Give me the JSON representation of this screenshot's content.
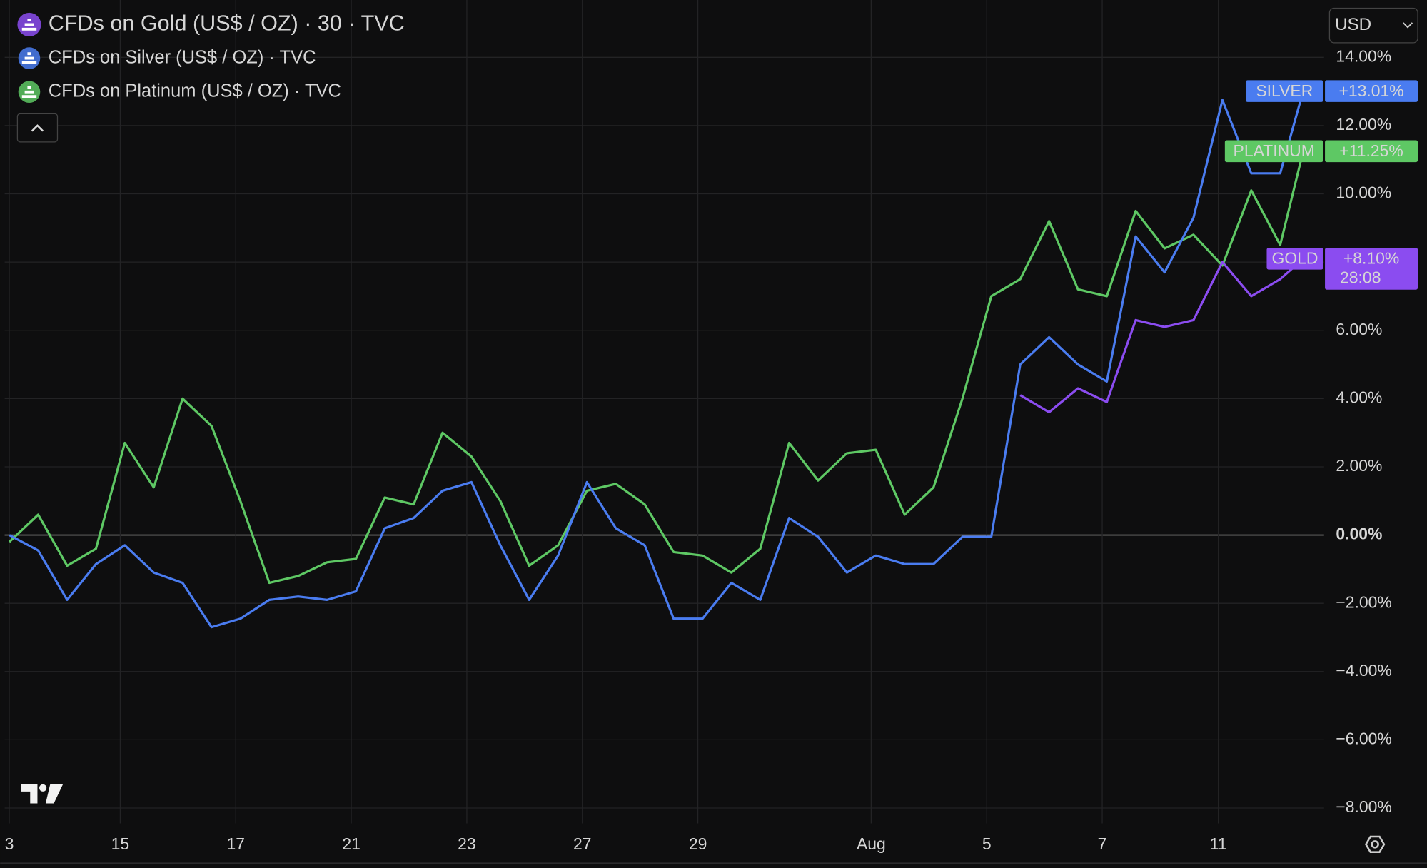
{
  "header": {
    "currency": "USD"
  },
  "chart_data": {
    "type": "line",
    "x": [
      0,
      0.5,
      1,
      1.5,
      2,
      2.5,
      3,
      3.5,
      4,
      4.5,
      5,
      5.5,
      6,
      6.5,
      7,
      7.5,
      8,
      8.5,
      9,
      9.5,
      10,
      10.5,
      11,
      11.5,
      12,
      12.5,
      13,
      13.5,
      14,
      14.5,
      15,
      15.5,
      16,
      16.5,
      17,
      17.5,
      18,
      18.5,
      19,
      19.5,
      20,
      20.5,
      21,
      21.5,
      22,
      22.4
    ],
    "xlim": [
      -0.08,
      22.76
    ],
    "xticks": [
      {
        "value": 0,
        "label": "3"
      },
      {
        "value": 1.92,
        "label": "15"
      },
      {
        "value": 3.92,
        "label": "17"
      },
      {
        "value": 5.92,
        "label": "21"
      },
      {
        "value": 7.92,
        "label": "23"
      },
      {
        "value": 9.92,
        "label": "27"
      },
      {
        "value": 11.92,
        "label": "29"
      },
      {
        "value": 14.92,
        "label": "Aug"
      },
      {
        "value": 16.92,
        "label": "5"
      },
      {
        "value": 18.92,
        "label": "7"
      },
      {
        "value": 20.93,
        "label": "11"
      }
    ],
    "ylim": [
      -8.45,
      15.68
    ],
    "yticks": [
      {
        "value": -8,
        "label": "−8.00%"
      },
      {
        "value": -6,
        "label": "−6.00%"
      },
      {
        "value": -4,
        "label": "−4.00%"
      },
      {
        "value": -2,
        "label": "−2.00%"
      },
      {
        "value": 0,
        "label": "0.00%"
      },
      {
        "value": 2,
        "label": "2.00%"
      },
      {
        "value": 4,
        "label": "4.00%"
      },
      {
        "value": 6,
        "label": "6.00%"
      },
      {
        "value": 8,
        "label": "8.00%"
      },
      {
        "value": 10,
        "label": "10.00%"
      },
      {
        "value": 12,
        "label": "12.00%"
      },
      {
        "value": 14,
        "label": "14.00%"
      }
    ],
    "grid": true,
    "series": [
      {
        "name": "CFDs on Gold (US$ / OZ) · 30 · TVC",
        "badge": "GOLD",
        "color": "#8b4cf0",
        "countdown": "28:08",
        "values": [
          null,
          null,
          null,
          null,
          null,
          null,
          null,
          null,
          null,
          null,
          null,
          null,
          null,
          null,
          null,
          null,
          null,
          null,
          null,
          null,
          null,
          null,
          null,
          null,
          null,
          null,
          null,
          null,
          null,
          null,
          null,
          null,
          null,
          null,
          null,
          4.1,
          3.6,
          4.3,
          3.9,
          6.3,
          6.1,
          6.3,
          8.0,
          7.0,
          7.5,
          8.1
        ],
        "value_labels": [
          null,
          null,
          null,
          null,
          null,
          null,
          null,
          null,
          null,
          null,
          null,
          null,
          null,
          null,
          null,
          null,
          null,
          null,
          null,
          null,
          null,
          null,
          null,
          null,
          null,
          null,
          null,
          null,
          null,
          null,
          null,
          null,
          null,
          null,
          null,
          null,
          null,
          null,
          null,
          null,
          null,
          null,
          null,
          null,
          null,
          "+8.10%"
        ]
      },
      {
        "name": "CFDs on Silver (US$ / OZ) · TVC",
        "badge": "SILVER",
        "color": "#4a7cf0",
        "values": [
          0,
          -0.45,
          -1.9,
          -0.85,
          -0.3,
          -1.1,
          -1.4,
          -2.7,
          -2.45,
          -1.9,
          -1.8,
          -1.9,
          -1.65,
          0.2,
          0.5,
          1.3,
          1.55,
          -0.3,
          -1.9,
          -0.6,
          1.55,
          0.2,
          -0.3,
          -2.45,
          -2.45,
          -1.4,
          -1.9,
          0.5,
          -0.05,
          -1.1,
          -0.6,
          -0.85,
          -0.85,
          -0.05,
          -0.05,
          5.0,
          5.8,
          5.0,
          4.5,
          8.75,
          7.7,
          9.3,
          12.75,
          10.6,
          10.6,
          13.01
        ],
        "value_labels": [
          null,
          null,
          null,
          null,
          null,
          null,
          null,
          null,
          null,
          null,
          null,
          null,
          null,
          null,
          null,
          null,
          null,
          null,
          null,
          null,
          null,
          null,
          null,
          null,
          null,
          null,
          null,
          null,
          null,
          null,
          null,
          null,
          null,
          null,
          null,
          null,
          null,
          null,
          null,
          null,
          null,
          null,
          null,
          null,
          null,
          "+13.01%"
        ]
      },
      {
        "name": "CFDs on Platinum (US$ / OZ) · TVC",
        "badge": "PLATINUM",
        "color": "#5ec864",
        "values": [
          -0.2,
          0.6,
          -0.9,
          -0.4,
          2.7,
          1.4,
          4.0,
          3.2,
          1.0,
          -1.4,
          -1.2,
          -0.8,
          -0.7,
          1.1,
          0.9,
          3.0,
          2.3,
          1.0,
          -0.9,
          -0.3,
          1.3,
          1.5,
          0.9,
          -0.5,
          -0.6,
          -1.1,
          -0.4,
          2.7,
          1.6,
          2.4,
          2.5,
          0.6,
          1.4,
          4.0,
          7.0,
          7.5,
          9.2,
          7.2,
          7.0,
          9.5,
          8.4,
          8.8,
          7.9,
          10.1,
          8.5,
          11.25
        ],
        "value_labels": [
          null,
          null,
          null,
          null,
          null,
          null,
          null,
          null,
          null,
          null,
          null,
          null,
          null,
          null,
          null,
          null,
          null,
          null,
          null,
          null,
          null,
          null,
          null,
          null,
          null,
          null,
          null,
          null,
          null,
          null,
          null,
          null,
          null,
          null,
          null,
          null,
          null,
          null,
          null,
          null,
          null,
          null,
          null,
          null,
          null,
          "+11.25%"
        ]
      }
    ]
  }
}
